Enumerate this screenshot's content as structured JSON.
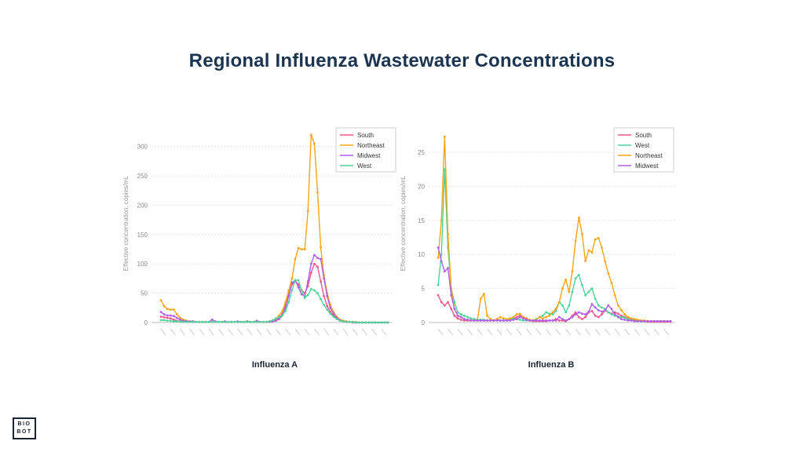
{
  "page": {
    "title": "Regional Influenza Wastewater Concentrations",
    "logo_line1": "BIO",
    "logo_line2": "BOT"
  },
  "colors": {
    "South": "#f0578c",
    "Northeast": "#f5a515",
    "Midwest": "#b05ee6",
    "West": "#4fd39a"
  },
  "chart_data": [
    {
      "type": "line",
      "title": "Influenza A",
      "ylabel": "Effective concentration, copies/mL",
      "ylim": [
        0,
        325
      ],
      "yticks": [
        0,
        50,
        100,
        150,
        200,
        250,
        300
      ],
      "grid": true,
      "legend_position": "top-right",
      "x_index": [
        0,
        1,
        2,
        3,
        4,
        5,
        6,
        7,
        8,
        9,
        10,
        11,
        12,
        13,
        14,
        15,
        16,
        17,
        18,
        19,
        20,
        21,
        22,
        23,
        24,
        25,
        26,
        27,
        28,
        29,
        30,
        31,
        32,
        33,
        34,
        35,
        36,
        37,
        38,
        39,
        40,
        41,
        42,
        43,
        44,
        45,
        46,
        47,
        48,
        49,
        50,
        51,
        52,
        53,
        54,
        55,
        56,
        57,
        58,
        59,
        60,
        61,
        62,
        63,
        64,
        65,
        66,
        67,
        68,
        69,
        70,
        71
      ],
      "series": [
        {
          "name": "South",
          "values": [
            10,
            9,
            8,
            7,
            5,
            3,
            2,
            2,
            1,
            1,
            1,
            1,
            1,
            1,
            1,
            1,
            1,
            1,
            1,
            1,
            1,
            1,
            1,
            1,
            1,
            1,
            1,
            1,
            1,
            1,
            1,
            1,
            1,
            1,
            1,
            2,
            4,
            8,
            15,
            30,
            50,
            65,
            70,
            65,
            55,
            50,
            62,
            85,
            100,
            95,
            70,
            45,
            28,
            18,
            12,
            7,
            4,
            2,
            1,
            1,
            1,
            0,
            0,
            0,
            0,
            0,
            0,
            0,
            0,
            0,
            0,
            0
          ]
        },
        {
          "name": "Northeast",
          "values": [
            38,
            28,
            23,
            22,
            22,
            14,
            8,
            5,
            3,
            2,
            2,
            1,
            1,
            1,
            1,
            1,
            1,
            1,
            1,
            1,
            1,
            1,
            1,
            1,
            1,
            1,
            1,
            1,
            1,
            1,
            1,
            1,
            1,
            1,
            2,
            3,
            6,
            12,
            20,
            35,
            55,
            75,
            108,
            127,
            125,
            125,
            190,
            320,
            305,
            222,
            128,
            80,
            50,
            30,
            18,
            10,
            5,
            3,
            2,
            1,
            1,
            1,
            0,
            0,
            0,
            0,
            0,
            0,
            0,
            0,
            0,
            0
          ]
        },
        {
          "name": "Midwest",
          "values": [
            18,
            14,
            12,
            12,
            11,
            8,
            5,
            3,
            2,
            2,
            2,
            1,
            1,
            1,
            1,
            1,
            5,
            2,
            1,
            1,
            2,
            1,
            1,
            1,
            2,
            1,
            1,
            2,
            1,
            1,
            3,
            1,
            1,
            1,
            1,
            2,
            3,
            6,
            12,
            25,
            45,
            68,
            72,
            60,
            48,
            45,
            70,
            100,
            115,
            110,
            108,
            75,
            45,
            25,
            15,
            8,
            4,
            2,
            1,
            1,
            0,
            0,
            0,
            0,
            0,
            0,
            0,
            0,
            0,
            0,
            0,
            0
          ]
        },
        {
          "name": "West",
          "values": [
            4,
            4,
            3,
            3,
            2,
            2,
            2,
            1,
            1,
            1,
            1,
            1,
            1,
            1,
            1,
            1,
            1,
            1,
            1,
            1,
            1,
            1,
            1,
            1,
            1,
            1,
            1,
            1,
            1,
            1,
            1,
            1,
            1,
            1,
            2,
            4,
            7,
            9,
            12,
            20,
            35,
            55,
            72,
            72,
            55,
            42,
            47,
            57,
            55,
            50,
            40,
            30,
            22,
            15,
            10,
            6,
            3,
            2,
            1,
            1,
            1,
            0,
            0,
            0,
            0,
            0,
            0,
            0,
            0,
            0,
            0,
            0
          ]
        }
      ]
    },
    {
      "type": "line",
      "title": "Influenza B",
      "ylabel": "Effective concentration, copies/mL",
      "ylim": [
        0,
        28
      ],
      "yticks": [
        0,
        5,
        10,
        15,
        20,
        25
      ],
      "grid": true,
      "legend_position": "top-right",
      "x_index": [
        0,
        1,
        2,
        3,
        4,
        5,
        6,
        7,
        8,
        9,
        10,
        11,
        12,
        13,
        14,
        15,
        16,
        17,
        18,
        19,
        20,
        21,
        22,
        23,
        24,
        25,
        26,
        27,
        28,
        29,
        30,
        31,
        32,
        33,
        34,
        35,
        36,
        37,
        38,
        39,
        40,
        41,
        42,
        43,
        44,
        45,
        46,
        47,
        48,
        49,
        50,
        51,
        52,
        53,
        54,
        55,
        56,
        57,
        58,
        59,
        60,
        61,
        62,
        63,
        64,
        65,
        66,
        67,
        68,
        69,
        70,
        71
      ],
      "series": [
        {
          "name": "South",
          "values": [
            4,
            3,
            2.5,
            3,
            2,
            1,
            0.6,
            0.4,
            0.3,
            0.3,
            0.3,
            0.3,
            0.3,
            0.3,
            0.3,
            0.3,
            0.3,
            0.3,
            0.5,
            0.3,
            0.3,
            0.3,
            0.4,
            0.6,
            0.8,
            1.0,
            0.8,
            0.6,
            0.3,
            0.2,
            0.2,
            0.2,
            0.2,
            0.2,
            0.3,
            0.3,
            0.5,
            0.3,
            0.3,
            0.2,
            0.5,
            1.0,
            1.5,
            0.8,
            0.5,
            0.8,
            1.5,
            1.7,
            1.0,
            0.8,
            1.2,
            1.8,
            1.5,
            1.3,
            1.5,
            1.3,
            1.0,
            0.8,
            0.6,
            0.5,
            0.4,
            0.3,
            0.2,
            0.2,
            0.1,
            0.1,
            0.1,
            0.1,
            0.1,
            0.1,
            0.1,
            0.1
          ]
        },
        {
          "name": "West",
          "values": [
            5.5,
            10,
            22.5,
            11,
            5,
            3,
            1.5,
            1.2,
            1.0,
            0.8,
            0.6,
            0.5,
            0.4,
            0.4,
            0.4,
            0.3,
            0.3,
            0.3,
            0.4,
            0.3,
            0.3,
            0.3,
            0.4,
            0.6,
            0.5,
            0.4,
            0.3,
            0.3,
            0.3,
            0.3,
            0.5,
            0.8,
            1.0,
            1.5,
            1.3,
            1.2,
            1.7,
            3.0,
            2.5,
            1.5,
            2.5,
            4.5,
            6.5,
            7.0,
            5.5,
            4.0,
            4.5,
            5.0,
            3.5,
            2.5,
            2.2,
            2.0,
            1.5,
            1.2,
            1.0,
            0.9,
            0.8,
            0.7,
            0.5,
            0.4,
            0.3,
            0.3,
            0.2,
            0.2,
            0.2,
            0.2,
            0.2,
            0.2,
            0.2,
            0.2,
            0.2,
            0.2
          ]
        },
        {
          "name": "Northeast",
          "values": [
            9.5,
            15,
            27.3,
            13,
            5,
            2,
            1.0,
            0.8,
            0.5,
            0.4,
            0.3,
            0.3,
            0.3,
            3.5,
            4.2,
            1.0,
            0.5,
            0.3,
            0.5,
            0.8,
            0.6,
            0.5,
            0.6,
            0.8,
            1.2,
            1.3,
            0.8,
            0.5,
            0.4,
            0.3,
            0.4,
            0.8,
            0.6,
            0.8,
            1.0,
            1.5,
            2.0,
            3.0,
            5.0,
            6.3,
            4.5,
            7.5,
            12.0,
            15.4,
            13.0,
            9.0,
            10.6,
            10.3,
            12.2,
            12.4,
            11.0,
            9.0,
            7.2,
            5.8,
            4.0,
            2.5,
            1.8,
            1.2,
            0.8,
            0.6,
            0.5,
            0.4,
            0.3,
            0.3,
            0.2,
            0.2,
            0.2,
            0.2,
            0.2,
            0.2,
            0.2,
            0.2
          ]
        },
        {
          "name": "Midwest",
          "values": [
            11,
            9,
            7.5,
            8,
            4,
            2,
            1.0,
            0.8,
            0.5,
            0.4,
            0.3,
            0.3,
            0.3,
            0.3,
            0.3,
            0.3,
            0.3,
            0.3,
            0.3,
            0.3,
            0.3,
            0.3,
            0.3,
            0.4,
            0.5,
            0.8,
            0.6,
            0.4,
            0.3,
            0.3,
            0.3,
            0.3,
            0.3,
            0.3,
            0.3,
            0.3,
            0.3,
            0.8,
            0.5,
            0.3,
            0.5,
            0.8,
            1.2,
            1.5,
            1.3,
            1.2,
            1.6,
            2.7,
            2.2,
            1.8,
            1.6,
            1.8,
            2.5,
            2.0,
            1.2,
            0.8,
            0.5,
            0.4,
            0.3,
            0.3,
            0.2,
            0.2,
            0.2,
            0.2,
            0.2,
            0.2,
            0.2,
            0.2,
            0.2,
            0.2,
            0.2,
            0.2
          ]
        }
      ]
    }
  ]
}
